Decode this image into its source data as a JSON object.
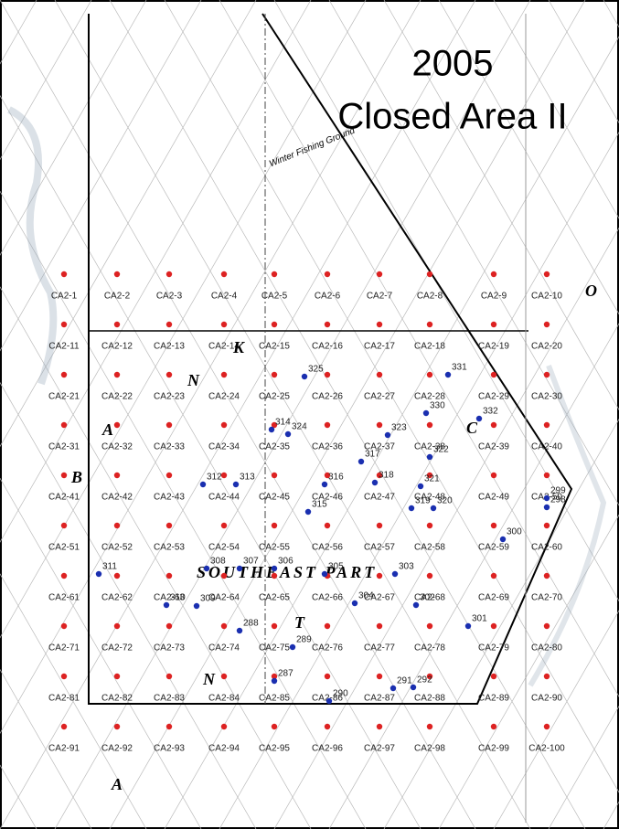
{
  "title": [
    "2005",
    "Closed Area II"
  ],
  "stations": [
    "CA2-1",
    "CA2-2",
    "CA2-3",
    "CA2-4",
    "CA2-5",
    "CA2-6",
    "CA2-7",
    "CA2-8",
    "CA2-9",
    "CA2-10",
    "CA2-11",
    "CA2-12",
    "CA2-13",
    "CA2-14",
    "CA2-15",
    "CA2-16",
    "CA2-17",
    "CA2-18",
    "CA2-19",
    "CA2-20",
    "CA2-21",
    "CA2-22",
    "CA2-23",
    "CA2-24",
    "CA2-25",
    "CA2-26",
    "CA2-27",
    "CA2-28",
    "CA2-29",
    "CA2-30",
    "CA2-31",
    "CA2-32",
    "CA2-33",
    "CA2-34",
    "CA2-35",
    "CA2-36",
    "CA2-37",
    "CA2-38",
    "CA2-39",
    "CA2-40",
    "CA2-41",
    "CA2-42",
    "CA2-43",
    "CA2-44",
    "CA2-45",
    "CA2-46",
    "CA2-47",
    "CA2-48",
    "CA2-49",
    "CA2-50",
    "CA2-51",
    "CA2-52",
    "CA2-53",
    "CA2-54",
    "CA2-55",
    "CA2-56",
    "CA2-57",
    "CA2-58",
    "CA2-59",
    "CA2-60",
    "CA2-61",
    "CA2-62",
    "CA2-63",
    "CA2-64",
    "CA2-65",
    "CA2-66",
    "CA2-67",
    "CA2-68",
    "CA2-69",
    "CA2-70",
    "CA2-71",
    "CA2-72",
    "CA2-73",
    "CA2-74",
    "CA2-75",
    "CA2-76",
    "CA2-77",
    "CA2-78",
    "CA2-79",
    "CA2-80",
    "CA2-81",
    "CA2-82",
    "CA2-83",
    "CA2-84",
    "CA2-85",
    "CA2-86",
    "CA2-87",
    "CA2-88",
    "CA2-89",
    "CA2-90",
    "CA2-91",
    "CA2-92",
    "CA2-93",
    "CA2-94",
    "CA2-95",
    "CA2-96",
    "CA2-97",
    "CA2-98",
    "CA2-99",
    "CA2-100"
  ],
  "extra_stations": [
    "287",
    "288",
    "289",
    "290",
    "291",
    "292",
    "298",
    "299",
    "300",
    "301",
    "302",
    "303",
    "304",
    "305",
    "306",
    "307",
    "308",
    "309",
    "310",
    "311",
    "312",
    "313",
    "314",
    "315",
    "316",
    "317",
    "318",
    "319",
    "320",
    "321",
    "322",
    "323",
    "324",
    "325",
    "330",
    "331",
    "332"
  ],
  "annotations": {
    "fishing_ground": "Winter Fishing Ground",
    "part": "SOUTHEAST PART",
    "letters": [
      "K",
      "N",
      "A",
      "B",
      "C",
      "O",
      "T",
      "N",
      "A"
    ]
  }
}
